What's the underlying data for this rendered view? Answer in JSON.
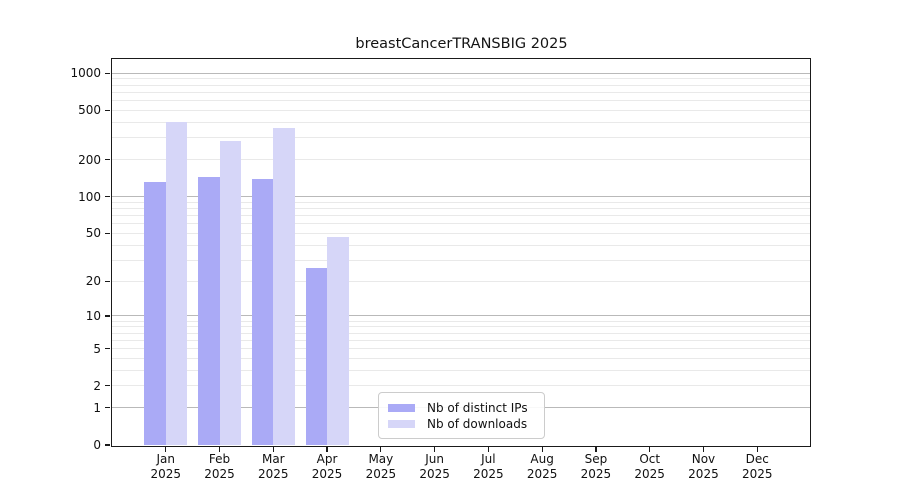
{
  "figure": {
    "background": "#ffffff"
  },
  "chart_data": {
    "type": "bar",
    "title": "breastCancerTRANSBIG 2025",
    "x_categories": [
      {
        "month": "Jan",
        "year": "2025"
      },
      {
        "month": "Feb",
        "year": "2025"
      },
      {
        "month": "Mar",
        "year": "2025"
      },
      {
        "month": "Apr",
        "year": "2025"
      },
      {
        "month": "May",
        "year": "2025"
      },
      {
        "month": "Jun",
        "year": "2025"
      },
      {
        "month": "Jul",
        "year": "2025"
      },
      {
        "month": "Aug",
        "year": "2025"
      },
      {
        "month": "Sep",
        "year": "2025"
      },
      {
        "month": "Oct",
        "year": "2025"
      },
      {
        "month": "Nov",
        "year": "2025"
      },
      {
        "month": "Dec",
        "year": "2025"
      }
    ],
    "series": [
      {
        "name": "Nb of distinct IPs",
        "color": "#aaaaf6",
        "values": [
          131,
          144,
          139,
          26,
          0,
          0,
          0,
          0,
          0,
          0,
          0,
          0
        ]
      },
      {
        "name": "Nb of downloads",
        "color": "#d6d6f8",
        "values": [
          404,
          281,
          358,
          47,
          0,
          0,
          0,
          0,
          0,
          0,
          0,
          0
        ]
      }
    ],
    "y_axis": {
      "scale": "log10(value+1)",
      "tick_values": [
        0,
        1,
        2,
        5,
        10,
        20,
        50,
        100,
        200,
        500,
        1000
      ],
      "tick_labels": [
        "0",
        "1",
        "2",
        "5",
        "10",
        "20",
        "50",
        "100",
        "200",
        "500",
        "1000"
      ],
      "range_top": 1290,
      "major_grid_values": [
        1,
        10,
        100,
        1000
      ],
      "minor_grid_values": [
        2,
        3,
        4,
        5,
        6,
        7,
        8,
        9,
        20,
        30,
        40,
        50,
        60,
        70,
        80,
        90,
        200,
        300,
        400,
        500,
        600,
        700,
        800,
        900
      ]
    },
    "grid": "horizontal",
    "legend_position": "lower center"
  },
  "legend": {
    "items": [
      {
        "label": "Nb of distinct IPs",
        "color": "#aaaaf6"
      },
      {
        "label": "Nb of downloads",
        "color": "#d6d6f8"
      }
    ]
  },
  "colors": {
    "major_grid": "#b9b9b9",
    "minor_grid": "#e9e9e9",
    "axis": "#1a1a1a",
    "text": "#111111"
  }
}
